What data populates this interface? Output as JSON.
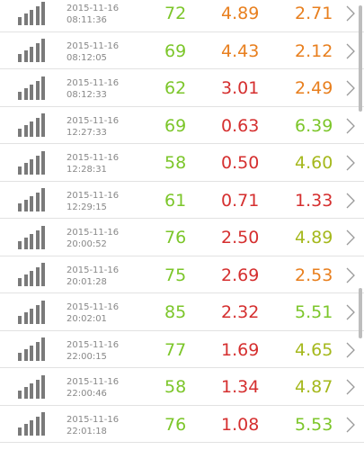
{
  "colors": {
    "good": "#7cc62a",
    "warn": "#e87f1e",
    "bad": "#d52f2f",
    "ok": "#a5b81c",
    "icon": "#7a7a7a",
    "timestamp": "#888888",
    "divider": "#e2e2e2"
  },
  "icons": {
    "signal": "signal-strength-icon",
    "chevron": "chevron-right-icon"
  },
  "rows": [
    {
      "date": "2015-11-16",
      "time": "08:11:36",
      "v1": "72",
      "v1_color": "good",
      "v2": "4.89",
      "v2_color": "warn",
      "v3": "2.71",
      "v3_color": "warn"
    },
    {
      "date": "2015-11-16",
      "time": "08:12:05",
      "v1": "69",
      "v1_color": "good",
      "v2": "4.43",
      "v2_color": "warn",
      "v3": "2.12",
      "v3_color": "warn"
    },
    {
      "date": "2015-11-16",
      "time": "08:12:33",
      "v1": "62",
      "v1_color": "good",
      "v2": "3.01",
      "v2_color": "bad",
      "v3": "2.49",
      "v3_color": "warn"
    },
    {
      "date": "2015-11-16",
      "time": "12:27:33",
      "v1": "69",
      "v1_color": "good",
      "v2": "0.63",
      "v2_color": "bad",
      "v3": "6.39",
      "v3_color": "good"
    },
    {
      "date": "2015-11-16",
      "time": "12:28:31",
      "v1": "58",
      "v1_color": "good",
      "v2": "0.50",
      "v2_color": "bad",
      "v3": "4.60",
      "v3_color": "ok"
    },
    {
      "date": "2015-11-16",
      "time": "12:29:15",
      "v1": "61",
      "v1_color": "good",
      "v2": "0.71",
      "v2_color": "bad",
      "v3": "1.33",
      "v3_color": "bad"
    },
    {
      "date": "2015-11-16",
      "time": "20:00:52",
      "v1": "76",
      "v1_color": "good",
      "v2": "2.50",
      "v2_color": "bad",
      "v3": "4.89",
      "v3_color": "ok"
    },
    {
      "date": "2015-11-16",
      "time": "20:01:28",
      "v1": "75",
      "v1_color": "good",
      "v2": "2.69",
      "v2_color": "bad",
      "v3": "2.53",
      "v3_color": "warn"
    },
    {
      "date": "2015-11-16",
      "time": "20:02:01",
      "v1": "85",
      "v1_color": "good",
      "v2": "2.32",
      "v2_color": "bad",
      "v3": "5.51",
      "v3_color": "good"
    },
    {
      "date": "2015-11-16",
      "time": "22:00:15",
      "v1": "77",
      "v1_color": "good",
      "v2": "1.69",
      "v2_color": "bad",
      "v3": "4.65",
      "v3_color": "ok"
    },
    {
      "date": "2015-11-16",
      "time": "22:00:46",
      "v1": "58",
      "v1_color": "good",
      "v2": "1.34",
      "v2_color": "bad",
      "v3": "4.87",
      "v3_color": "ok"
    },
    {
      "date": "2015-11-16",
      "time": "22:01:18",
      "v1": "76",
      "v1_color": "good",
      "v2": "1.08",
      "v2_color": "bad",
      "v3": "5.53",
      "v3_color": "good"
    }
  ]
}
